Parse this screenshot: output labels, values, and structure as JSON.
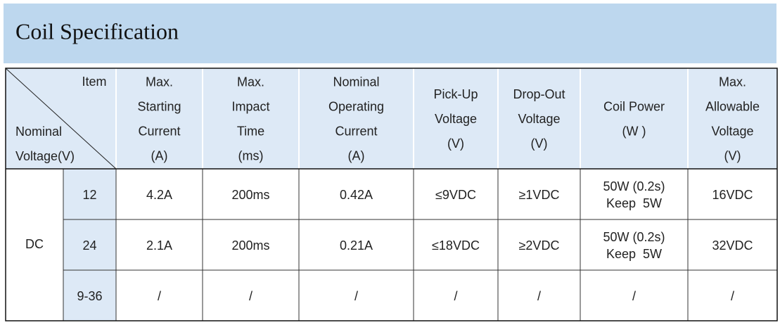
{
  "header": {
    "title": "Coil Specification"
  },
  "table": {
    "corner": {
      "top": "Item",
      "bottom": [
        "Nominal",
        "Voltage(V)"
      ]
    },
    "columns": [
      [
        "Max.",
        "Starting",
        "Current",
        "(A)"
      ],
      [
        "Max.",
        "Impact",
        "Time",
        "(ms)"
      ],
      [
        "Nominal",
        "Operating",
        "Current",
        "(A)"
      ],
      [
        "Pick-Up",
        "Voltage",
        "(V)"
      ],
      [
        "Drop-Out",
        "Voltage",
        "(V)"
      ],
      [
        "Coil Power",
        "(W )"
      ],
      [
        "Max.",
        "Allowable",
        "Voltage",
        "(V)"
      ]
    ],
    "group": "DC",
    "rows": [
      {
        "voltage": "12",
        "cells": [
          "4.2A",
          "200ms",
          "0.42A",
          "≤9VDC",
          "≥1VDC",
          [
            "50W (0.2s)",
            "Keep  5W"
          ],
          "16VDC"
        ]
      },
      {
        "voltage": "24",
        "cells": [
          "2.1A",
          "200ms",
          "0.21A",
          "≤18VDC",
          "≥2VDC",
          [
            "50W (0.2s)",
            "Keep  5W"
          ],
          "32VDC"
        ]
      },
      {
        "voltage": "9-36",
        "cells": [
          "/",
          "/",
          "/",
          "/",
          "/",
          "/",
          "/"
        ]
      }
    ]
  }
}
